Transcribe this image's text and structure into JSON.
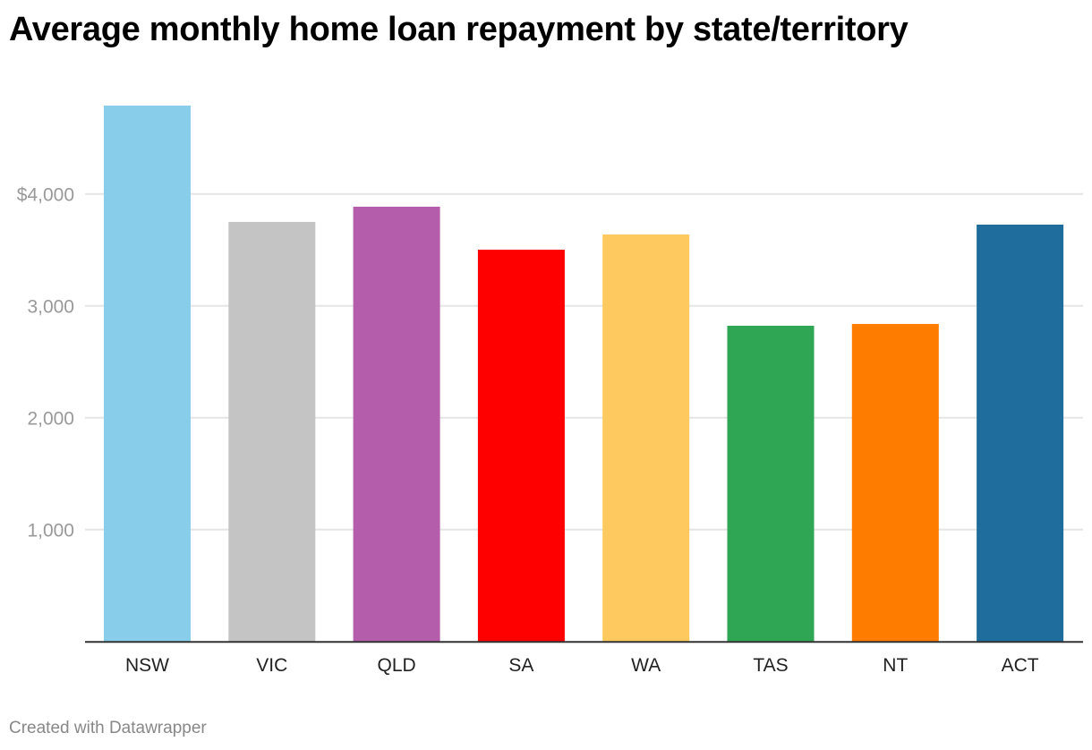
{
  "chart_data": {
    "type": "bar",
    "title": "Average monthly home loan repayment by state/territory",
    "categories": [
      "NSW",
      "VIC",
      "QLD",
      "SA",
      "WA",
      "TAS",
      "NT",
      "ACT"
    ],
    "values": [
      4790,
      3750,
      3886,
      3502,
      3638,
      2822,
      2838,
      3726
    ],
    "colors": [
      "#88cdea",
      "#c4c4c4",
      "#b45dab",
      "#ff0000",
      "#fec95e",
      "#2ea653",
      "#fe7c00",
      "#1f6d9c"
    ],
    "ylim": [
      0,
      4800
    ],
    "yticks": [
      1000,
      2000,
      3000,
      4000
    ],
    "ytick_labels": [
      "1,000",
      "2,000",
      "3,000",
      "$4,000"
    ],
    "grid": true,
    "xlabel": "",
    "ylabel": ""
  },
  "footer": "Created with Datawrapper"
}
